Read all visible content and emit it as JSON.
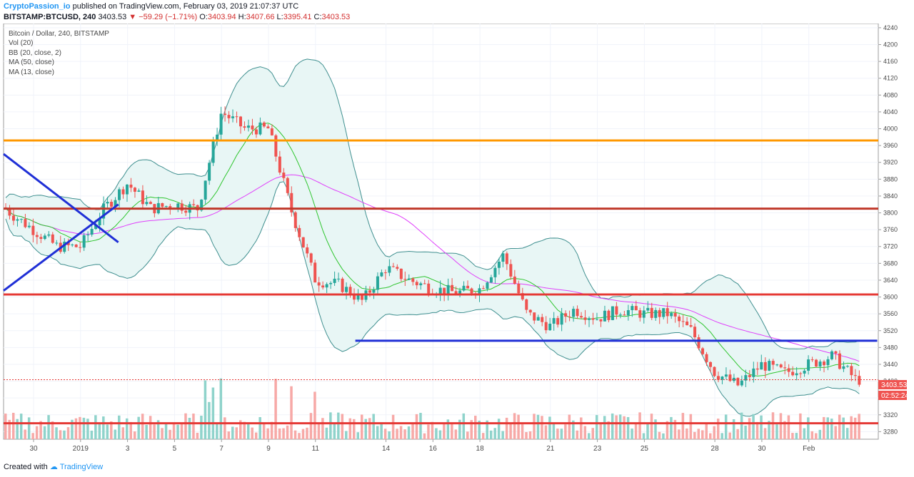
{
  "header": {
    "author": "CryptoPassion_io",
    "published_text": "published on TradingView.com, February 03, 2019 21:07:37 UTC",
    "symbol": "BITSTAMP:BTCUSD, 240",
    "last": "3403.53",
    "change": "▼ −59.29 (−1.71%)",
    "o_label": "O:",
    "o": "3403.94",
    "h_label": "H:",
    "h": "3407.66",
    "l_label": "L:",
    "l": "3395.41",
    "c_label": "C:",
    "c": "3403.53"
  },
  "legend": [
    "Bitcoin / Dollar, 240, BITSTAMP",
    "Vol (20)",
    "BB (20, close, 2)",
    "MA (50, close)",
    "MA (13, close)"
  ],
  "footer": {
    "created_with": "Created with",
    "brand": "TradingView"
  },
  "price_label": "3403.53",
  "countdown_label": "02:52:24",
  "colors": {
    "up": "#26a69a",
    "down": "#ef5350",
    "vol_up": "#8fd3cb",
    "vol_down": "#f7a9a7",
    "bb": "#3f8f8f",
    "bb_fill": "#e8f6f5",
    "ma50": "#e040fb",
    "ma13_green": "#2ec52e",
    "ma13_brown": "#8b2a2a",
    "orange_line": "#ff9800",
    "red_line": "#e53935",
    "brown_line": "#c0392b",
    "blue_line": "#1f2fd6"
  },
  "chart_data": {
    "type": "candlestick",
    "y_axis_ticks": [
      3280,
      3320,
      3360,
      3400,
      3440,
      3480,
      3520,
      3560,
      3600,
      3640,
      3680,
      3720,
      3760,
      3800,
      3840,
      3880,
      3920,
      3960,
      4000,
      4040,
      4080,
      4120,
      4160,
      4200,
      4240
    ],
    "y_range": [
      3262,
      4250
    ],
    "x_axis_labels": [
      "30",
      "2019",
      "3",
      "5",
      "7",
      "9",
      "11",
      "14",
      "16",
      "18",
      "21",
      "23",
      "25",
      "28",
      "30",
      "Feb"
    ],
    "horizontal_levels": [
      {
        "price": 3972,
        "color": "orange"
      },
      {
        "price": 3810,
        "color": "brown"
      },
      {
        "price": 3606,
        "color": "red"
      },
      {
        "price": 3300,
        "color": "red"
      },
      {
        "price": 3403.53,
        "color": "dotted-red"
      }
    ],
    "support_line": {
      "from_date": "Jan 13",
      "to_date": "Feb 3",
      "price": 3496
    },
    "trend_lines": [
      {
        "from": [
          "Dec 28",
          3940
        ],
        "to": [
          "Jan 2",
          3730
        ]
      },
      {
        "from": [
          "Dec 28",
          3615
        ],
        "to": [
          "Jan 2",
          3820
        ]
      }
    ],
    "price_path": [
      [
        "Dec 28",
        3860
      ],
      [
        "Dec 29",
        3800
      ],
      [
        "Dec 30",
        3760
      ],
      [
        "Dec 31",
        3720
      ],
      [
        "Jan 1",
        3720
      ],
      [
        "Jan 2",
        3810
      ],
      [
        "Jan 3",
        3870
      ],
      [
        "Jan 4",
        3810
      ],
      [
        "Jan 5",
        3820
      ],
      [
        "Jan 6",
        3810
      ],
      [
        "Jan 7",
        4040
      ],
      [
        "Jan 8",
        4000
      ],
      [
        "Jan 9",
        4000
      ],
      [
        "Jan 10",
        3800
      ],
      [
        "Jan 11",
        3640
      ],
      [
        "Jan 12",
        3630
      ],
      [
        "Jan 13",
        3590
      ],
      [
        "Jan 14",
        3670
      ],
      [
        "Jan 15",
        3640
      ],
      [
        "Jan 16",
        3620
      ],
      [
        "Jan 17",
        3610
      ],
      [
        "Jan 18",
        3620
      ],
      [
        "Jan 19",
        3700
      ],
      [
        "Jan 20",
        3560
      ],
      [
        "Jan 21",
        3530
      ],
      [
        "Jan 22",
        3570
      ],
      [
        "Jan 23",
        3550
      ],
      [
        "Jan 24",
        3570
      ],
      [
        "Jan 25",
        3560
      ],
      [
        "Jan 26",
        3560
      ],
      [
        "Jan 27",
        3520
      ],
      [
        "Jan 28",
        3420
      ],
      [
        "Jan 29",
        3390
      ],
      [
        "Jan 30",
        3440
      ],
      [
        "Jan 31",
        3420
      ],
      [
        "Feb 1",
        3440
      ],
      [
        "Feb 2",
        3460
      ],
      [
        "Feb 3",
        3403.53
      ]
    ]
  }
}
